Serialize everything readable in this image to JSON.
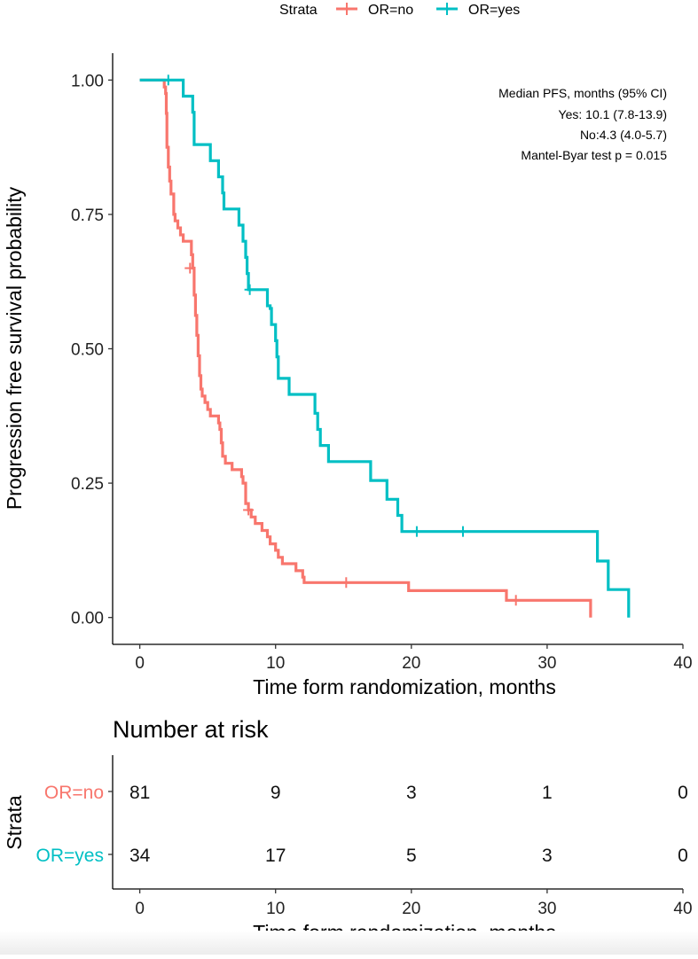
{
  "chart_data": {
    "type": "line",
    "subtype": "kaplan-meier",
    "legend": {
      "title": "Strata",
      "position": "top",
      "entries": [
        {
          "label": "OR=no",
          "color": "#F8766D"
        },
        {
          "label": "OR=yes",
          "color": "#00BFC4"
        }
      ]
    },
    "xlabel": "Time form randomization, months",
    "ylabel": "Progression free survival probability",
    "xlim": [
      -2,
      40
    ],
    "ylim": [
      -0.05,
      1.05
    ],
    "xticks": [
      0,
      10,
      20,
      30,
      40
    ],
    "yticks": [
      0,
      0.25,
      0.5,
      0.75,
      1.0
    ],
    "ytick_labels": [
      "0.00",
      "0.25",
      "0.50",
      "0.75",
      "1.00"
    ],
    "annotation": [
      "Median PFS, months (95% CI)",
      "Yes: 10.1 (7.8-13.9)",
      "No:4.3 (4.0-5.7)",
      "Mantel-Byar test p = 0.015"
    ],
    "series": [
      {
        "name": "OR=no",
        "color": "#F8766D",
        "steps": [
          [
            0,
            1.0
          ],
          [
            1.8,
            1.0
          ],
          [
            1.8,
            0.987
          ],
          [
            1.9,
            0.975
          ],
          [
            1.95,
            0.938
          ],
          [
            2.0,
            0.875
          ],
          [
            2.1,
            0.838
          ],
          [
            2.2,
            0.812
          ],
          [
            2.3,
            0.788
          ],
          [
            2.5,
            0.75
          ],
          [
            2.6,
            0.738
          ],
          [
            2.8,
            0.725
          ],
          [
            3.0,
            0.712
          ],
          [
            3.2,
            0.7
          ],
          [
            3.8,
            0.7
          ],
          [
            3.8,
            0.675
          ],
          [
            3.9,
            0.65
          ],
          [
            4.0,
            0.6
          ],
          [
            4.1,
            0.562
          ],
          [
            4.2,
            0.525
          ],
          [
            4.3,
            0.487
          ],
          [
            4.4,
            0.45
          ],
          [
            4.5,
            0.425
          ],
          [
            4.6,
            0.412
          ],
          [
            4.8,
            0.4
          ],
          [
            5.0,
            0.387
          ],
          [
            5.2,
            0.375
          ],
          [
            5.8,
            0.375
          ],
          [
            5.8,
            0.362
          ],
          [
            5.9,
            0.35
          ],
          [
            6.0,
            0.325
          ],
          [
            6.1,
            0.3
          ],
          [
            6.3,
            0.287
          ],
          [
            6.8,
            0.287
          ],
          [
            6.8,
            0.275
          ],
          [
            7.5,
            0.275
          ],
          [
            7.5,
            0.262
          ],
          [
            7.6,
            0.25
          ],
          [
            7.8,
            0.212
          ],
          [
            8.0,
            0.2
          ],
          [
            8.2,
            0.187
          ],
          [
            8.5,
            0.175
          ],
          [
            9.0,
            0.162
          ],
          [
            9.4,
            0.15
          ],
          [
            9.6,
            0.137
          ],
          [
            10.0,
            0.125
          ],
          [
            10.2,
            0.112
          ],
          [
            10.5,
            0.1
          ],
          [
            11.5,
            0.1
          ],
          [
            11.5,
            0.087
          ],
          [
            12.0,
            0.075
          ],
          [
            12.1,
            0.065
          ],
          [
            19.8,
            0.065
          ],
          [
            19.8,
            0.05
          ],
          [
            27.0,
            0.05
          ],
          [
            27.0,
            0.032
          ],
          [
            33.2,
            0.032
          ],
          [
            33.2,
            0.0
          ]
        ],
        "censors": [
          [
            3.7,
            0.65
          ],
          [
            8.0,
            0.2
          ],
          [
            15.2,
            0.065
          ],
          [
            27.7,
            0.032
          ]
        ]
      },
      {
        "name": "OR=yes",
        "color": "#00BFC4",
        "steps": [
          [
            0,
            1.0
          ],
          [
            3.2,
            1.0
          ],
          [
            3.2,
            0.97
          ],
          [
            3.9,
            0.97
          ],
          [
            3.9,
            0.94
          ],
          [
            4.0,
            0.88
          ],
          [
            5.2,
            0.88
          ],
          [
            5.2,
            0.85
          ],
          [
            5.8,
            0.85
          ],
          [
            5.8,
            0.82
          ],
          [
            6.1,
            0.82
          ],
          [
            6.1,
            0.79
          ],
          [
            6.2,
            0.76
          ],
          [
            7.3,
            0.76
          ],
          [
            7.3,
            0.73
          ],
          [
            7.6,
            0.73
          ],
          [
            7.6,
            0.7
          ],
          [
            7.8,
            0.67
          ],
          [
            7.9,
            0.64
          ],
          [
            8.0,
            0.61
          ],
          [
            9.4,
            0.61
          ],
          [
            9.4,
            0.58
          ],
          [
            9.6,
            0.575
          ],
          [
            9.7,
            0.545
          ],
          [
            10.0,
            0.545
          ],
          [
            10.0,
            0.515
          ],
          [
            10.1,
            0.485
          ],
          [
            10.2,
            0.445
          ],
          [
            11.0,
            0.445
          ],
          [
            11.0,
            0.415
          ],
          [
            12.9,
            0.415
          ],
          [
            12.9,
            0.38
          ],
          [
            13.1,
            0.35
          ],
          [
            13.3,
            0.32
          ],
          [
            13.9,
            0.32
          ],
          [
            13.9,
            0.29
          ],
          [
            17.0,
            0.29
          ],
          [
            17.0,
            0.255
          ],
          [
            18.2,
            0.255
          ],
          [
            18.2,
            0.22
          ],
          [
            19.0,
            0.22
          ],
          [
            19.0,
            0.19
          ],
          [
            19.3,
            0.16
          ],
          [
            33.7,
            0.16
          ],
          [
            33.7,
            0.105
          ],
          [
            34.5,
            0.105
          ],
          [
            34.5,
            0.052
          ],
          [
            36.0,
            0.052
          ],
          [
            36.0,
            0.0
          ]
        ],
        "censors": [
          [
            2.1,
            1.0
          ],
          [
            8.1,
            0.61
          ],
          [
            20.4,
            0.16
          ],
          [
            23.8,
            0.16
          ]
        ]
      }
    ]
  },
  "risk_table": {
    "title": "Number at risk",
    "ylabel": "Strata",
    "xlabel": "Time form randomization, months",
    "times": [
      0,
      10,
      20,
      30,
      40
    ],
    "time_labels": [
      "0",
      "10",
      "20",
      "30",
      "40"
    ],
    "rows": [
      {
        "label": "OR=no",
        "color": "#F8766D",
        "counts": [
          "81",
          "9",
          "3",
          "1",
          "0"
        ]
      },
      {
        "label": "OR=yes",
        "color": "#00BFC4",
        "counts": [
          "34",
          "17",
          "5",
          "3",
          "0"
        ]
      }
    ]
  }
}
